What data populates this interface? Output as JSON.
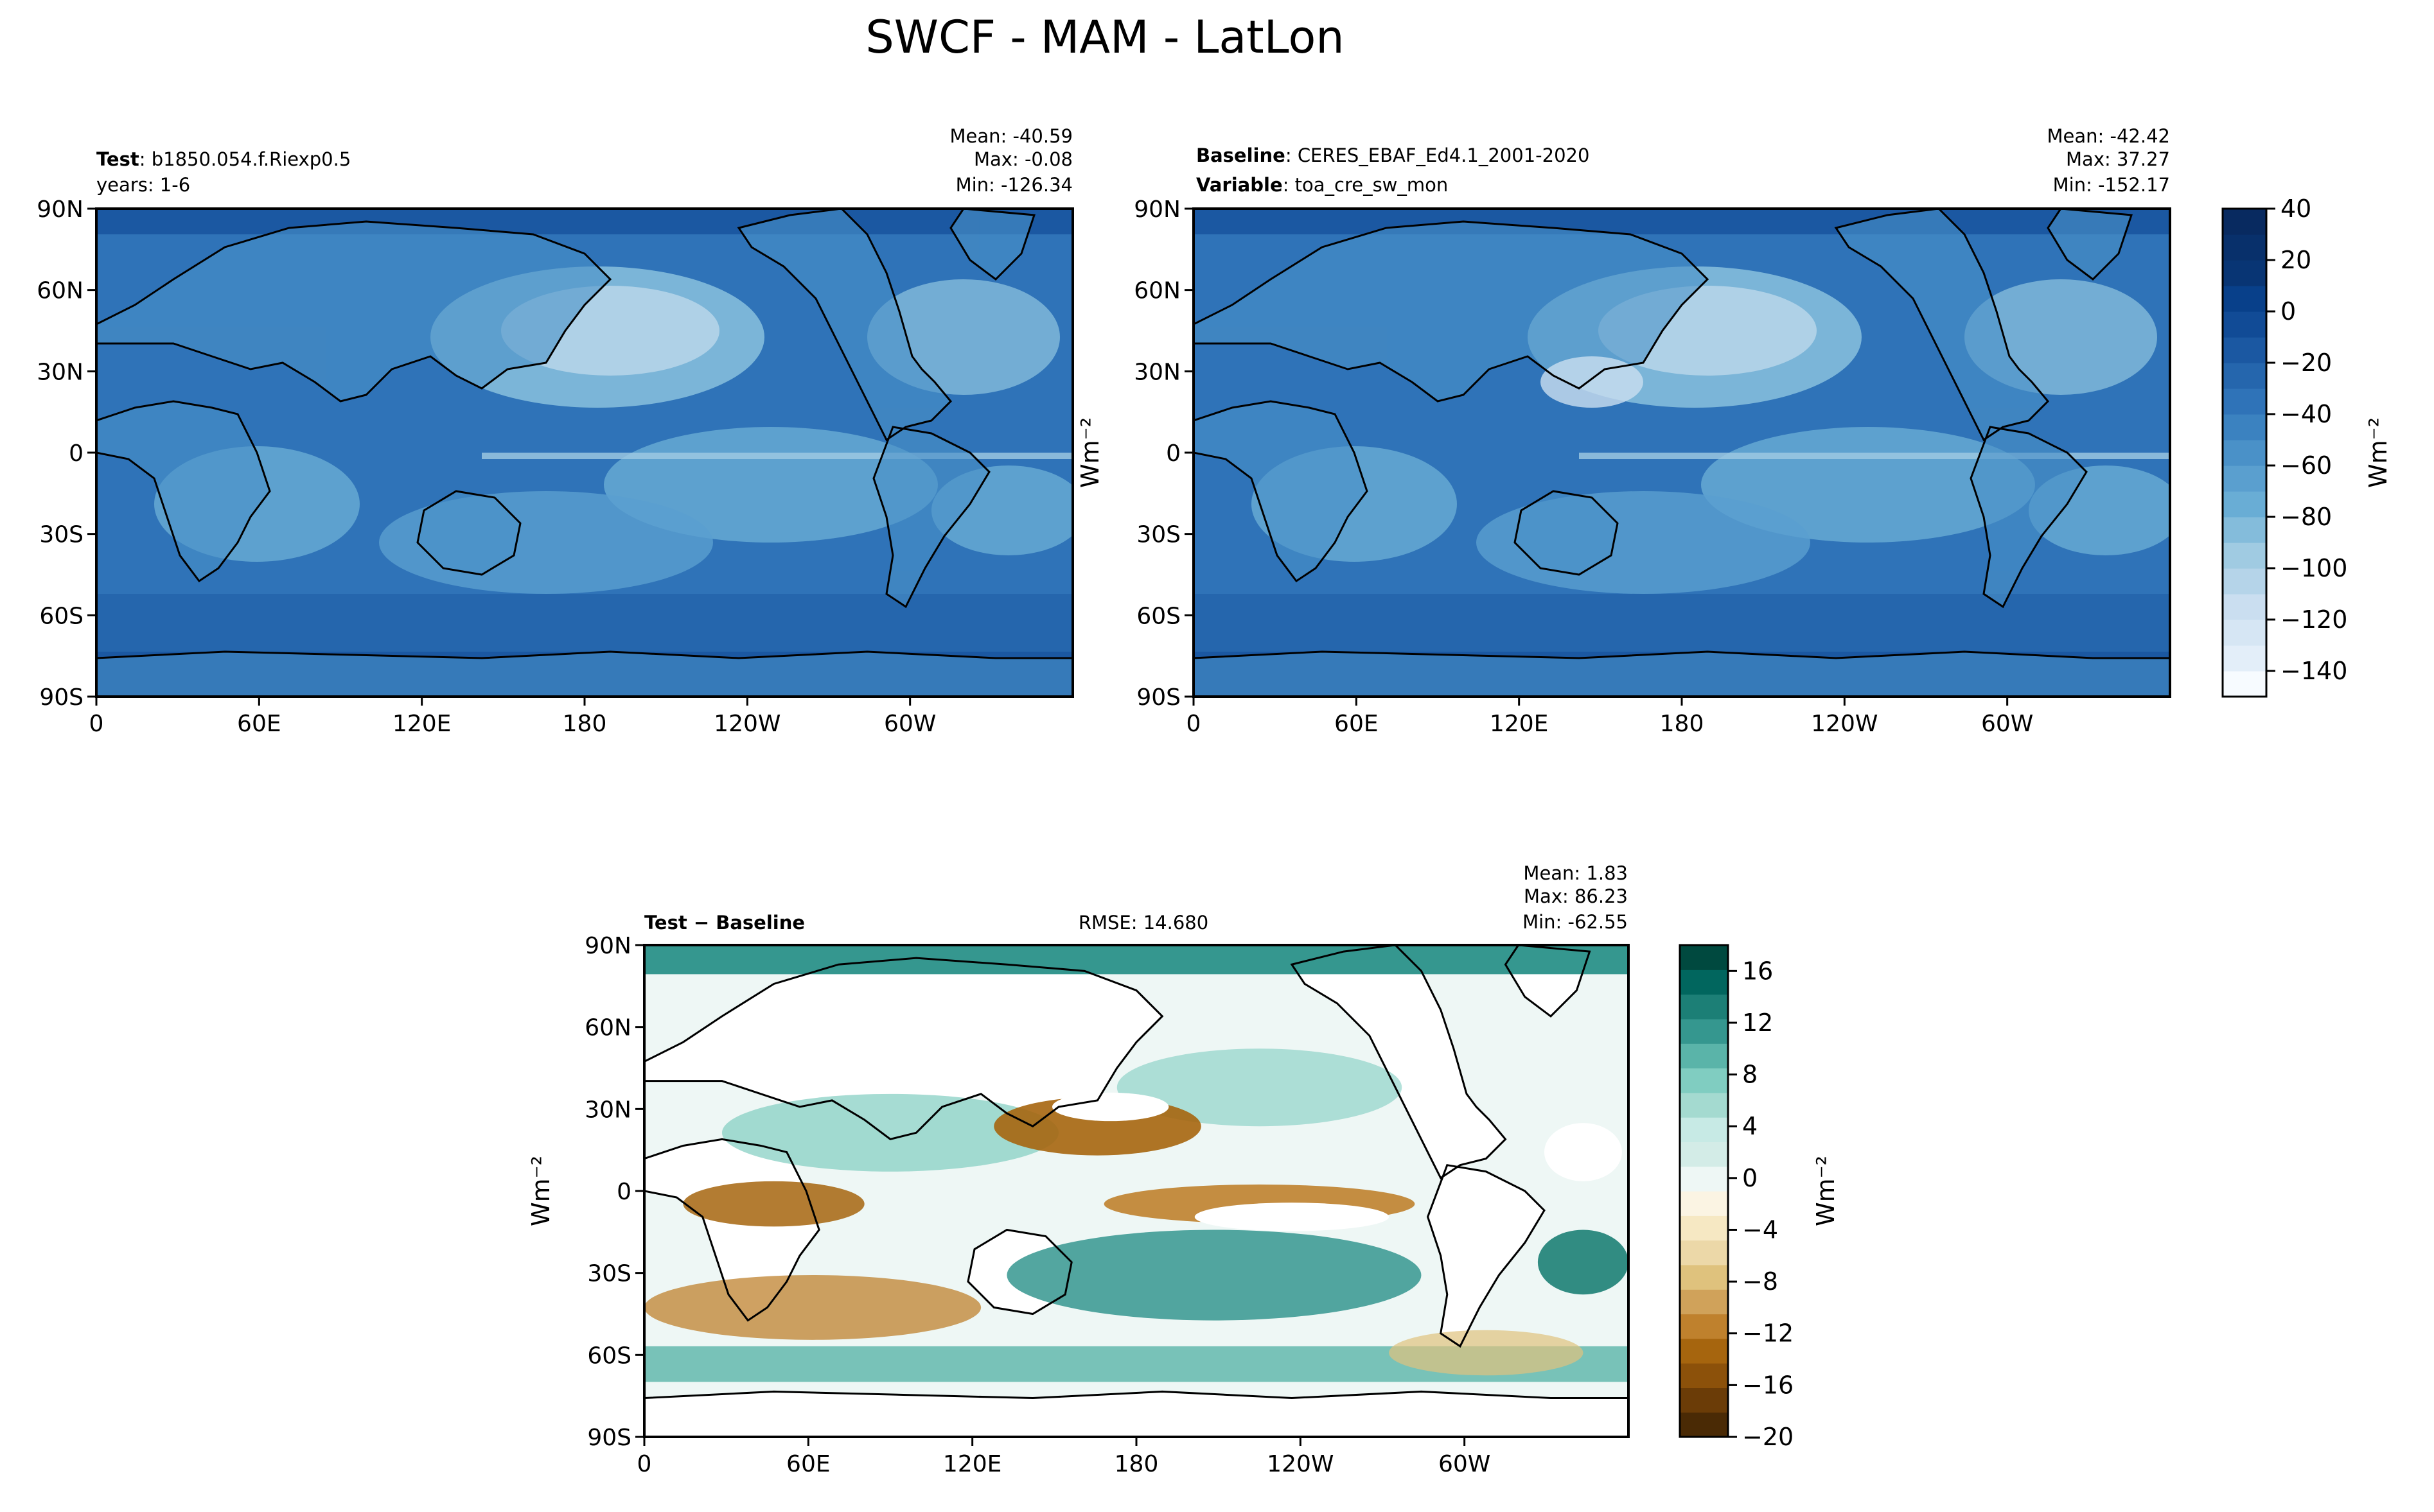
{
  "figure_title": "SWCF - MAM - LatLon",
  "lat_ticks": [
    "90N",
    "60N",
    "30N",
    "0",
    "30S",
    "60S",
    "90S"
  ],
  "lon_ticks": [
    "0",
    "60E",
    "120E",
    "180",
    "120W",
    "60W"
  ],
  "panels": {
    "test": {
      "label_key": "Test",
      "label_val": "b1850.054.f.Riexp0.5",
      "line2": "years: 1-6",
      "stats": {
        "mean": "Mean: -40.59",
        "max": "Max: -0.08",
        "min": "Min: -126.34"
      }
    },
    "baseline": {
      "label_key": "Baseline",
      "label_val": "CERES_EBAF_Ed4.1_2001-2020",
      "line2_key": "Variable",
      "line2_val": "toa_cre_sw_mon",
      "stats": {
        "mean": "Mean: -42.42",
        "max": "Max: 37.27",
        "min": "Min: -152.17"
      }
    },
    "diff": {
      "label": "Test − Baseline",
      "rmse": "RMSE: 14.680",
      "stats": {
        "mean": "Mean:  1.83",
        "max": "Max: 86.23",
        "min": "Min: -62.55"
      }
    }
  },
  "colorbar_main": {
    "unit": "Wm⁻²",
    "ticks": [
      "40",
      "20",
      "0",
      "−20",
      "−40",
      "−60",
      "−80",
      "−100",
      "−120",
      "−140"
    ],
    "range": [
      -150,
      40
    ],
    "colors": [
      "#f7fbff",
      "#e3eef9",
      "#d6e6f4",
      "#cadef0",
      "#b5d4e9",
      "#a0cbe2",
      "#84bcdb",
      "#69add5",
      "#5a9fcf",
      "#4a91c8",
      "#3b82c0",
      "#2f73b8",
      "#2566ad",
      "#1b58a2",
      "#114b96",
      "#08408a",
      "#083574",
      "#08306b",
      "#082a60"
    ]
  },
  "colorbar_diff": {
    "unit": "Wm⁻²",
    "ticks": [
      "16",
      "12",
      "8",
      "4",
      "0",
      "−4",
      "−8",
      "−12",
      "−16",
      "−20"
    ],
    "range": [
      -20,
      18
    ],
    "colors": [
      "#4a2a05",
      "#6b3c07",
      "#8c510a",
      "#a6650e",
      "#bf812d",
      "#d0a25a",
      "#dfc27d",
      "#ecd8a8",
      "#f6e8c3",
      "#fbf4e3",
      "#eef7f5",
      "#d3ece7",
      "#c7eae5",
      "#a4dad0",
      "#80cdc1",
      "#5ab4a9",
      "#35978f",
      "#1c7f76",
      "#01665e",
      "#00493f"
    ]
  },
  "map_colors": {
    "ocean_blue": "#2f73b8",
    "land_blue": "#5a9fcf",
    "light_band": "#cadef0",
    "diff_base": "#eef7f5",
    "diff_teal": "#35978f",
    "diff_brown": "#a6650e",
    "diff_white": "#ffffff"
  }
}
